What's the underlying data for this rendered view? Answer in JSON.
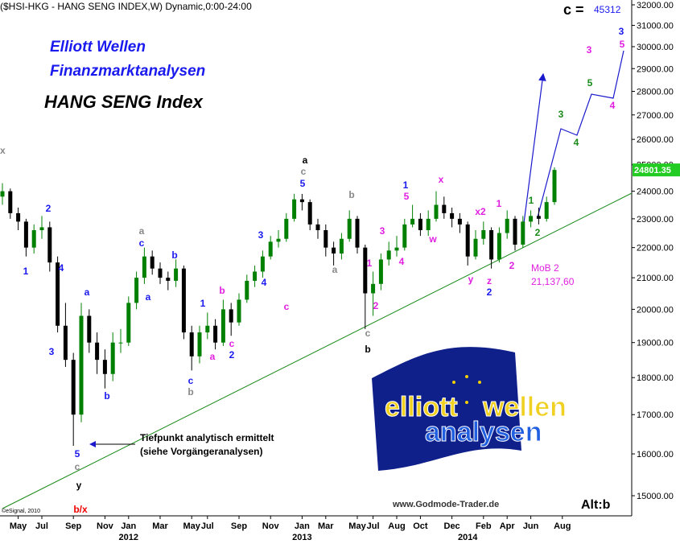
{
  "chart_data": {
    "type": "candlestick",
    "header": "($HSI-HKG - HANG SENG INDEX,W) Dynamic,0:00-24:00",
    "brand_line1": "Elliott Wellen",
    "brand_line2": "Finanzmarktanalysen",
    "title": "HANG SENG Index",
    "target": {
      "label": "c =",
      "value": 45312
    },
    "mob_label": "MoB 2",
    "mob_value": "21,137,60",
    "note_line1": "Tiefpunkt analytisch ermittelt",
    "note_line2": "(siehe Vorgängeranalysen)",
    "website": "www.Godmode-Trader.de",
    "alt": "Alt:b",
    "copyright": "©eSignal, 2010",
    "corner_mark": "x",
    "logo": [
      "elliott",
      "wellen",
      "analysen"
    ],
    "log_scale": true,
    "up_color": "#008000",
    "down_color": "#000000",
    "categories": [
      null,
      null,
      "May",
      null,
      null,
      "Jul",
      null,
      null,
      null,
      "Sep",
      null,
      null,
      null,
      "Nov",
      null,
      null,
      "Jan",
      null,
      null,
      null,
      "Mar",
      null,
      null,
      null,
      "May",
      null,
      "Jul",
      null,
      null,
      null,
      "Sep",
      null,
      null,
      null,
      "Nov",
      null,
      null,
      null,
      "Jan",
      null,
      null,
      "Mar",
      null,
      null,
      null,
      "May",
      null,
      "Jul",
      null,
      null,
      "Aug",
      null,
      null,
      "Oct",
      null,
      null,
      null,
      "Dec",
      null,
      null,
      null,
      "Feb",
      null,
      null,
      "Apr",
      null,
      null,
      "Jun",
      null,
      null,
      null,
      "Aug"
    ],
    "year_labels": [
      {
        "value": 16,
        "label": "2012"
      },
      {
        "value": 38,
        "label": "2013"
      },
      {
        "value": 59,
        "label": "2014"
      }
    ],
    "open": [
      23800,
      24000,
      23200,
      22900,
      22000,
      22600,
      22700,
      21500,
      19500,
      18500,
      17000,
      19800,
      19000,
      18500,
      18100,
      19000,
      19000,
      20200,
      21000,
      21700,
      21300,
      21000,
      20900,
      21300,
      19300,
      18600,
      19300,
      19500,
      19000,
      20000,
      19600,
      20300,
      20900,
      21200,
      21700,
      22200,
      22300,
      23000,
      23700,
      23600,
      22800,
      22600,
      22000,
      21800,
      22300,
      23000,
      22000,
      20500,
      20800,
      21600,
      21900,
      22000,
      22800,
      23000,
      22600,
      23000,
      23500,
      23200,
      23000,
      22800,
      21700,
      22300,
      22600,
      21600,
      22500,
      23000,
      22100,
      22900,
      23100,
      23000,
      23600,
      null
    ],
    "high": [
      24300,
      24100,
      23400,
      23000,
      22800,
      23100,
      22900,
      21700,
      20200,
      18700,
      20200,
      20000,
      19300,
      18800,
      19300,
      19400,
      20400,
      21200,
      22000,
      21900,
      21500,
      21200,
      21600,
      21400,
      19500,
      19500,
      19900,
      19700,
      20300,
      20200,
      20500,
      21100,
      21400,
      21900,
      22400,
      22600,
      23200,
      23900,
      23900,
      23700,
      23000,
      22800,
      22200,
      22500,
      23300,
      23100,
      22100,
      21200,
      21800,
      22200,
      22400,
      23000,
      23500,
      23200,
      23300,
      24000,
      23800,
      23400,
      23200,
      22900,
      22600,
      22900,
      22700,
      22700,
      23300,
      23100,
      23100,
      23300,
      23400,
      23800,
      24900,
      null
    ],
    "low": [
      23500,
      23000,
      22600,
      21700,
      21800,
      22300,
      21200,
      19300,
      18300,
      16200,
      16800,
      18700,
      18100,
      17700,
      17900,
      18700,
      18900,
      20000,
      20800,
      21100,
      20800,
      20600,
      20700,
      19100,
      18200,
      18400,
      19100,
      18800,
      18900,
      19200,
      19500,
      20200,
      20700,
      21000,
      21600,
      22000,
      22200,
      22900,
      23300,
      22600,
      22300,
      21700,
      21400,
      21600,
      22200,
      21800,
      19400,
      19800,
      20600,
      21400,
      21700,
      21900,
      22700,
      22400,
      22400,
      22900,
      23000,
      22700,
      22500,
      21400,
      21600,
      22100,
      21300,
      21500,
      22300,
      21900,
      22000,
      22700,
      22800,
      22900,
      23500,
      null
    ],
    "close": [
      24000,
      23200,
      22900,
      22000,
      22600,
      22700,
      21500,
      19500,
      18500,
      17000,
      19800,
      19000,
      18500,
      18100,
      19000,
      19000,
      20200,
      21000,
      21700,
      21300,
      21000,
      20900,
      21300,
      19300,
      18600,
      19300,
      19500,
      19000,
      20000,
      19600,
      20300,
      20900,
      21200,
      21700,
      22200,
      22300,
      23000,
      23700,
      23600,
      22800,
      22600,
      22000,
      21800,
      22300,
      23000,
      22000,
      20500,
      20800,
      21600,
      21900,
      22000,
      22800,
      23000,
      22600,
      23000,
      23500,
      23200,
      23000,
      22800,
      21700,
      22300,
      22600,
      21600,
      22500,
      23000,
      22100,
      22900,
      23100,
      23000,
      23600,
      24801.35,
      null
    ],
    "ylim": [
      15000,
      32000
    ],
    "yticks": [
      {
        "value": 15000,
        "label": "15000.00"
      },
      {
        "value": 16000,
        "label": "16000.00"
      },
      {
        "value": 17000,
        "label": "17000.00"
      },
      {
        "value": 18000,
        "label": "18000.00"
      },
      {
        "value": 19000,
        "label": "19000.00"
      },
      {
        "value": 20000,
        "label": "20000.00"
      },
      {
        "value": 21000,
        "label": "21000.00"
      },
      {
        "value": 22000,
        "label": "22000.00"
      },
      {
        "value": 23000,
        "label": "23000.00"
      },
      {
        "value": 24000,
        "label": "24000.00"
      },
      {
        "value": 25000,
        "label": "25000.00"
      },
      {
        "value": 26000,
        "label": "26000.00"
      },
      {
        "value": 27000,
        "label": "27000.00"
      },
      {
        "value": 28000,
        "label": "28000.00"
      },
      {
        "value": 29000,
        "label": "29000.00"
      },
      {
        "value": 30000,
        "label": "30000.00"
      },
      {
        "value": 31000,
        "label": "31000.00"
      },
      {
        "value": 32000,
        "label": "32000.00"
      }
    ],
    "wave_labels": [
      "2",
      "1",
      "4",
      "3",
      "5",
      "c",
      "y",
      "b/x",
      "a",
      "b",
      "a",
      "c",
      "a",
      "b",
      "c",
      "b",
      "1",
      "b",
      "a",
      "c",
      "2",
      "c",
      "3",
      "4",
      "a",
      "c",
      "5",
      "a",
      "b",
      "1",
      "2",
      "c",
      "b",
      "3",
      "4",
      "1",
      "5",
      "x",
      "w",
      "x2",
      "1",
      "y",
      "z",
      "2",
      "2",
      "1",
      "2",
      "3",
      "4",
      "3",
      "5",
      "4",
      "3",
      "5"
    ]
  }
}
